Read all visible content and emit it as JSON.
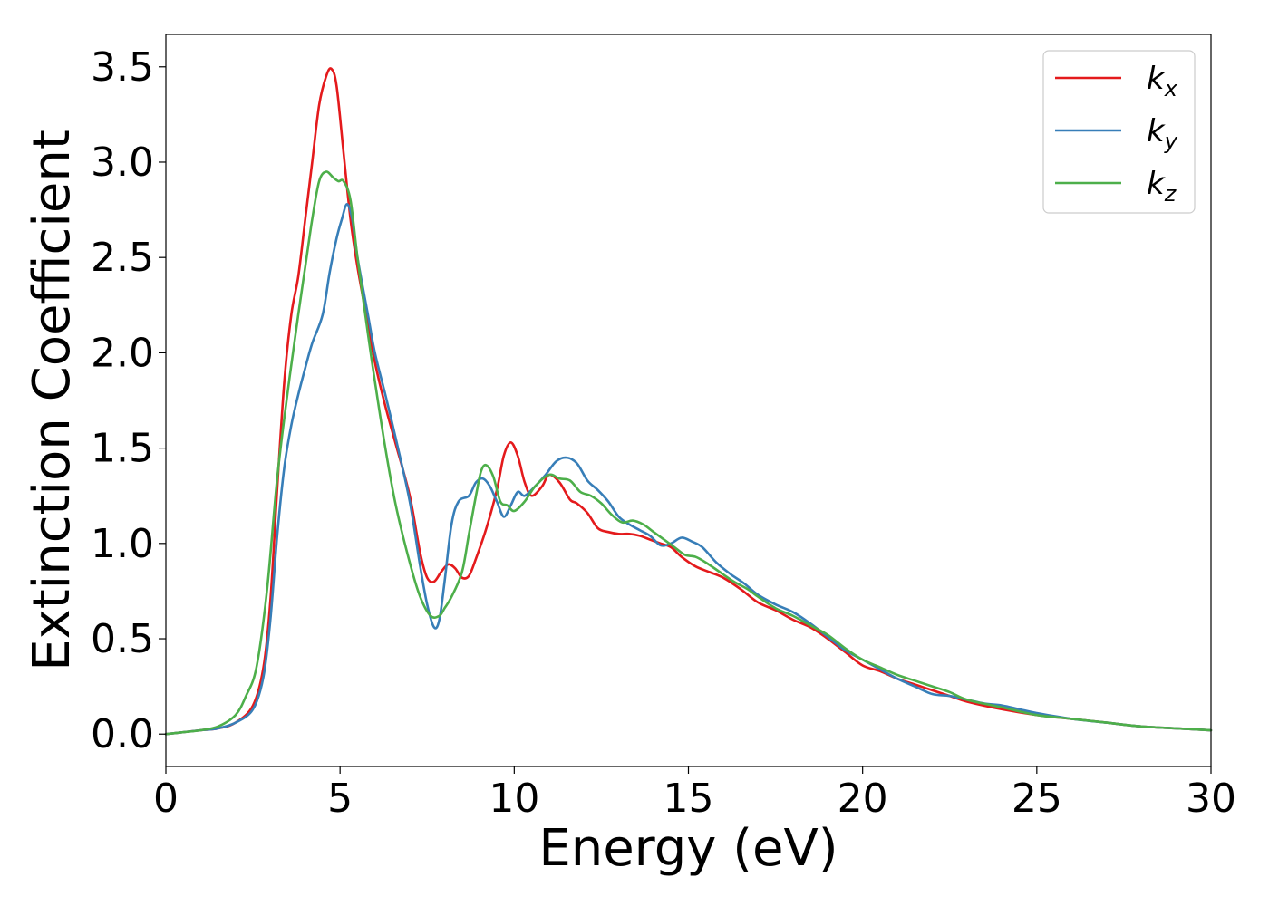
{
  "chart_data": {
    "type": "line",
    "title": "",
    "xlabel": "Energy (eV)",
    "ylabel": "Extinction Coefficient",
    "xlim": [
      0,
      30
    ],
    "ylim": [
      -0.17,
      3.67
    ],
    "xticks": [
      0,
      5,
      10,
      15,
      20,
      25,
      30
    ],
    "xtick_labels": [
      "0",
      "5",
      "10",
      "15",
      "20",
      "25",
      "30"
    ],
    "yticks": [
      0.0,
      0.5,
      1.0,
      1.5,
      2.0,
      2.5,
      3.0,
      3.5
    ],
    "ytick_labels": [
      "0.0",
      "0.5",
      "1.0",
      "1.5",
      "2.0",
      "2.5",
      "3.0",
      "3.5"
    ],
    "grid": false,
    "legend_position": "top-right",
    "series": [
      {
        "name": "k_x",
        "label_base": "k",
        "label_sub": "x",
        "color": "#e41a1c",
        "x": [
          0,
          0.5,
          1.0,
          1.5,
          2.0,
          2.5,
          2.8,
          3.0,
          3.2,
          3.4,
          3.6,
          3.8,
          4.0,
          4.2,
          4.4,
          4.6,
          4.75,
          4.9,
          5.1,
          5.3,
          5.5,
          5.8,
          6.0,
          6.3,
          6.6,
          7.0,
          7.3,
          7.5,
          7.7,
          7.9,
          8.1,
          8.3,
          8.5,
          8.7,
          8.9,
          9.2,
          9.5,
          9.7,
          9.9,
          10.1,
          10.3,
          10.5,
          10.8,
          11.0,
          11.3,
          11.6,
          11.8,
          12.1,
          12.4,
          12.7,
          13.0,
          13.3,
          13.6,
          13.9,
          14.2,
          14.5,
          14.8,
          15.2,
          15.6,
          16.0,
          16.5,
          17.0,
          17.5,
          18.0,
          18.5,
          19.0,
          19.5,
          20.0,
          20.5,
          21.0,
          21.5,
          22.0,
          22.5,
          23.0,
          24.0,
          25.0,
          26.0,
          27.0,
          28.0,
          29.0,
          30.0
        ],
        "y": [
          0.0,
          0.01,
          0.02,
          0.03,
          0.06,
          0.15,
          0.35,
          0.7,
          1.3,
          1.85,
          2.2,
          2.4,
          2.7,
          3.0,
          3.3,
          3.45,
          3.49,
          3.4,
          3.05,
          2.7,
          2.45,
          2.15,
          1.95,
          1.72,
          1.52,
          1.25,
          0.95,
          0.82,
          0.8,
          0.85,
          0.89,
          0.87,
          0.82,
          0.83,
          0.92,
          1.08,
          1.28,
          1.46,
          1.53,
          1.46,
          1.32,
          1.25,
          1.3,
          1.36,
          1.32,
          1.23,
          1.21,
          1.16,
          1.08,
          1.06,
          1.05,
          1.05,
          1.04,
          1.02,
          1.0,
          0.98,
          0.93,
          0.88,
          0.85,
          0.82,
          0.76,
          0.69,
          0.65,
          0.6,
          0.56,
          0.5,
          0.43,
          0.36,
          0.33,
          0.29,
          0.26,
          0.23,
          0.2,
          0.17,
          0.13,
          0.1,
          0.08,
          0.06,
          0.04,
          0.03,
          0.02
        ]
      },
      {
        "name": "k_y",
        "label_base": "k",
        "label_sub": "y",
        "color": "#377eb8",
        "x": [
          0,
          0.5,
          1.0,
          1.5,
          2.0,
          2.5,
          2.8,
          3.0,
          3.2,
          3.4,
          3.6,
          3.8,
          4.0,
          4.2,
          4.5,
          4.7,
          4.9,
          5.05,
          5.2,
          5.35,
          5.5,
          5.8,
          6.0,
          6.3,
          6.6,
          7.0,
          7.3,
          7.5,
          7.7,
          7.85,
          8.0,
          8.2,
          8.4,
          8.7,
          8.9,
          9.1,
          9.3,
          9.5,
          9.7,
          9.9,
          10.1,
          10.3,
          10.6,
          10.9,
          11.2,
          11.5,
          11.8,
          12.1,
          12.4,
          12.7,
          13.0,
          13.3,
          13.6,
          13.9,
          14.2,
          14.5,
          14.8,
          15.1,
          15.4,
          15.8,
          16.2,
          16.6,
          17.0,
          17.5,
          18.0,
          18.5,
          19.0,
          19.5,
          20.0,
          20.5,
          21.0,
          21.5,
          22.0,
          22.5,
          23.0,
          23.5,
          24.0,
          24.5,
          25.0,
          26.0,
          27.0,
          28.0,
          29.0,
          30.0
        ],
        "y": [
          0.0,
          0.01,
          0.02,
          0.03,
          0.06,
          0.13,
          0.3,
          0.6,
          1.05,
          1.4,
          1.62,
          1.78,
          1.92,
          2.05,
          2.2,
          2.42,
          2.6,
          2.7,
          2.78,
          2.7,
          2.5,
          2.2,
          2.0,
          1.78,
          1.55,
          1.22,
          0.88,
          0.68,
          0.56,
          0.6,
          0.8,
          1.1,
          1.22,
          1.25,
          1.32,
          1.34,
          1.3,
          1.22,
          1.14,
          1.2,
          1.27,
          1.25,
          1.3,
          1.36,
          1.43,
          1.45,
          1.42,
          1.33,
          1.28,
          1.22,
          1.14,
          1.1,
          1.07,
          1.04,
          0.99,
          1.0,
          1.03,
          1.01,
          0.98,
          0.9,
          0.84,
          0.79,
          0.73,
          0.68,
          0.64,
          0.58,
          0.51,
          0.44,
          0.39,
          0.34,
          0.29,
          0.25,
          0.21,
          0.2,
          0.18,
          0.16,
          0.15,
          0.13,
          0.11,
          0.08,
          0.06,
          0.04,
          0.03,
          0.02
        ]
      },
      {
        "name": "k_z",
        "label_base": "k",
        "label_sub": "z",
        "color": "#4daf4a",
        "x": [
          0,
          0.5,
          1.0,
          1.5,
          2.0,
          2.3,
          2.6,
          2.9,
          3.2,
          3.5,
          3.8,
          4.0,
          4.2,
          4.4,
          4.6,
          4.8,
          4.95,
          5.1,
          5.3,
          5.5,
          5.8,
          6.0,
          6.3,
          6.6,
          7.0,
          7.3,
          7.6,
          7.85,
          8.0,
          8.2,
          8.5,
          8.7,
          8.9,
          9.05,
          9.2,
          9.4,
          9.6,
          9.8,
          10.0,
          10.3,
          10.6,
          11.0,
          11.3,
          11.6,
          11.9,
          12.2,
          12.5,
          12.8,
          13.1,
          13.4,
          13.7,
          14.0,
          14.3,
          14.6,
          14.9,
          15.2,
          15.5,
          15.9,
          16.3,
          16.7,
          17.0,
          17.5,
          18.0,
          18.5,
          19.0,
          19.5,
          20.0,
          20.5,
          21.0,
          21.5,
          22.0,
          22.5,
          23.0,
          24.0,
          25.0,
          26.0,
          27.0,
          28.0,
          29.0,
          30.0
        ],
        "y": [
          0.0,
          0.01,
          0.02,
          0.04,
          0.1,
          0.2,
          0.35,
          0.75,
          1.35,
          1.8,
          2.2,
          2.45,
          2.7,
          2.9,
          2.95,
          2.92,
          2.9,
          2.9,
          2.8,
          2.5,
          2.1,
          1.85,
          1.5,
          1.2,
          0.9,
          0.72,
          0.62,
          0.62,
          0.66,
          0.72,
          0.85,
          1.05,
          1.25,
          1.38,
          1.41,
          1.35,
          1.22,
          1.2,
          1.17,
          1.22,
          1.3,
          1.36,
          1.34,
          1.33,
          1.27,
          1.25,
          1.21,
          1.15,
          1.11,
          1.12,
          1.1,
          1.06,
          1.02,
          0.98,
          0.94,
          0.93,
          0.9,
          0.85,
          0.8,
          0.76,
          0.72,
          0.66,
          0.62,
          0.57,
          0.52,
          0.45,
          0.39,
          0.35,
          0.31,
          0.28,
          0.25,
          0.22,
          0.18,
          0.14,
          0.1,
          0.08,
          0.06,
          0.04,
          0.03,
          0.02
        ]
      }
    ]
  }
}
